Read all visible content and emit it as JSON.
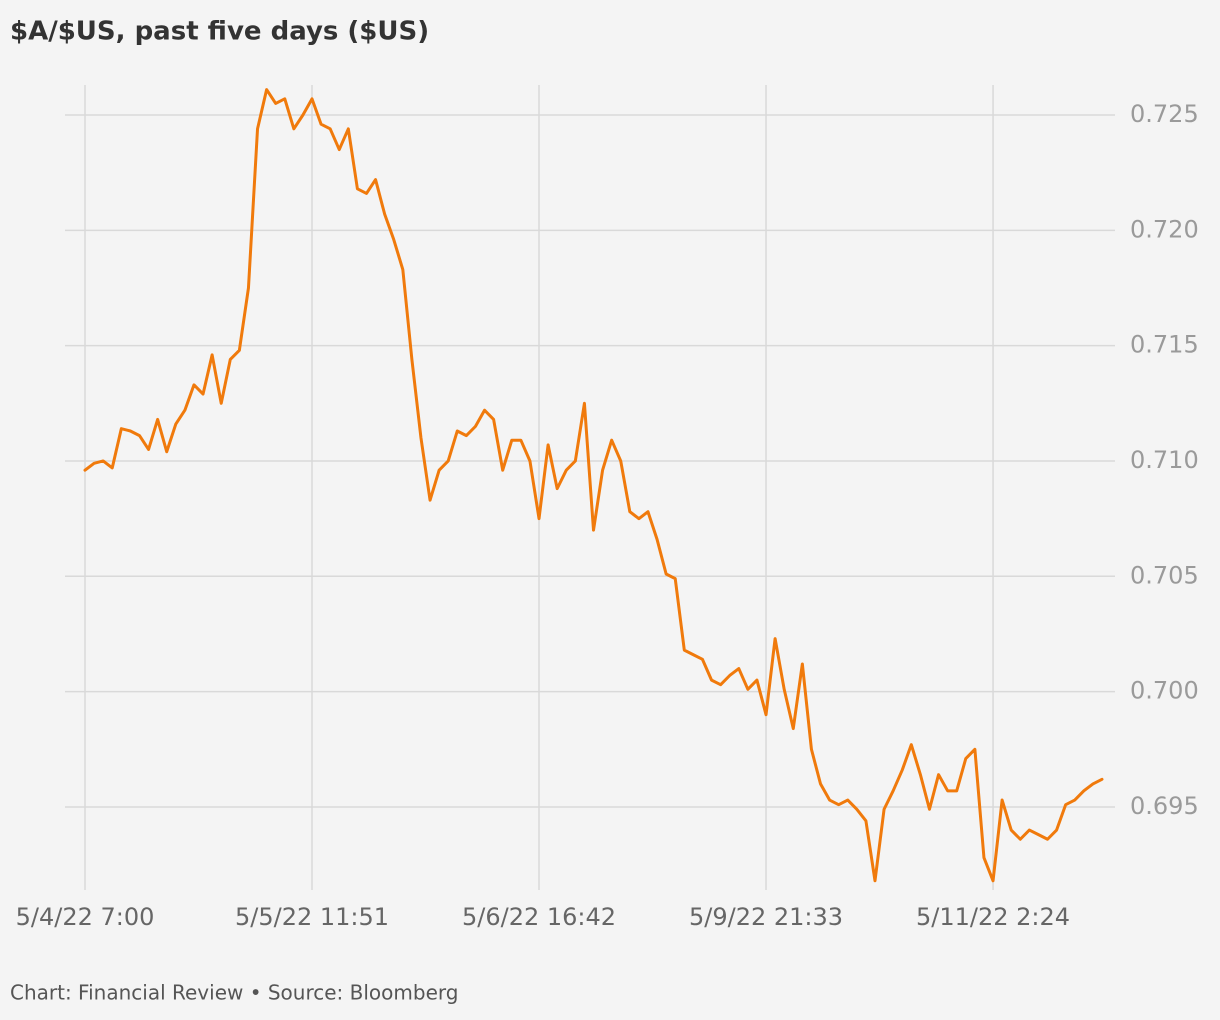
{
  "chart_data": {
    "type": "line",
    "title": "$A/$US, past five days ($US)",
    "source": "Chart: Financial Review • Source: Bloomberg",
    "categories": [
      "5/4/22 7:00",
      null,
      null,
      null,
      null,
      null,
      null,
      null,
      null,
      null,
      null,
      null,
      null,
      null,
      null,
      null,
      null,
      null,
      null,
      null,
      null,
      null,
      null,
      null,
      null,
      "5/5/22 11:51",
      null,
      null,
      null,
      null,
      null,
      null,
      null,
      null,
      null,
      null,
      null,
      null,
      null,
      null,
      null,
      null,
      null,
      null,
      null,
      null,
      null,
      null,
      null,
      null,
      "5/6/22 16:42",
      null,
      null,
      null,
      null,
      null,
      null,
      null,
      null,
      null,
      null,
      null,
      null,
      null,
      null,
      null,
      null,
      null,
      null,
      null,
      null,
      null,
      null,
      null,
      null,
      "5/9/22 21:33",
      null,
      null,
      null,
      null,
      null,
      null,
      null,
      null,
      null,
      null,
      null,
      null,
      null,
      null,
      null,
      null,
      null,
      null,
      null,
      null,
      null,
      null,
      null,
      null,
      "5/11/22 2:24",
      null,
      null,
      null,
      null,
      null,
      null,
      null,
      null,
      null,
      null,
      null,
      null
    ],
    "series": [
      {
        "name": "$A/$US",
        "color": "#f07a0c",
        "values": [
          0.7096,
          0.7099,
          0.71,
          0.7097,
          0.7114,
          0.7113,
          0.7111,
          0.7105,
          0.7118,
          0.7104,
          0.7116,
          0.7122,
          0.7133,
          0.7129,
          0.7146,
          0.7125,
          0.7144,
          0.7148,
          0.7175,
          0.7244,
          0.7261,
          0.7255,
          0.7257,
          0.7244,
          0.725,
          0.7257,
          0.7246,
          0.7244,
          0.7235,
          0.7244,
          0.7218,
          0.7216,
          0.7222,
          0.7207,
          0.7196,
          0.7183,
          0.7144,
          0.711,
          0.7083,
          0.7096,
          0.71,
          0.7113,
          0.7111,
          0.7115,
          0.7122,
          0.7118,
          0.7096,
          0.7109,
          0.7109,
          0.71,
          0.7075,
          0.7107,
          0.7088,
          0.7096,
          0.71,
          0.7125,
          0.707,
          0.7096,
          0.7109,
          0.71,
          0.7078,
          0.7075,
          0.7078,
          0.7066,
          0.7051,
          0.7049,
          0.7018,
          0.7016,
          0.7014,
          0.7005,
          0.7003,
          0.7007,
          0.701,
          0.7001,
          0.7005,
          0.699,
          0.7023,
          0.7001,
          0.6984,
          0.7012,
          0.6975,
          0.696,
          0.6953,
          0.6951,
          0.6953,
          0.6949,
          0.6944,
          0.6918,
          0.6949,
          0.6957,
          0.6966,
          0.6977,
          0.6964,
          0.6949,
          0.6964,
          0.6957,
          0.6957,
          0.6971,
          0.6975,
          0.6928,
          0.6918,
          0.6953,
          0.694,
          0.6936,
          0.694,
          0.6938,
          0.6936,
          0.694,
          0.6951,
          0.6953,
          0.6957,
          0.696,
          0.6962
        ]
      }
    ],
    "ylim": [
      0.6914,
      0.7263
    ],
    "yticks": [
      0.695,
      {
        "value": 0.7,
        "label": "0.700"
      },
      0.705,
      {
        "value": 0.71,
        "label": "0.710"
      },
      0.715,
      {
        "value": 0.72,
        "label": "0.720"
      },
      0.725
    ],
    "grid": true
  }
}
